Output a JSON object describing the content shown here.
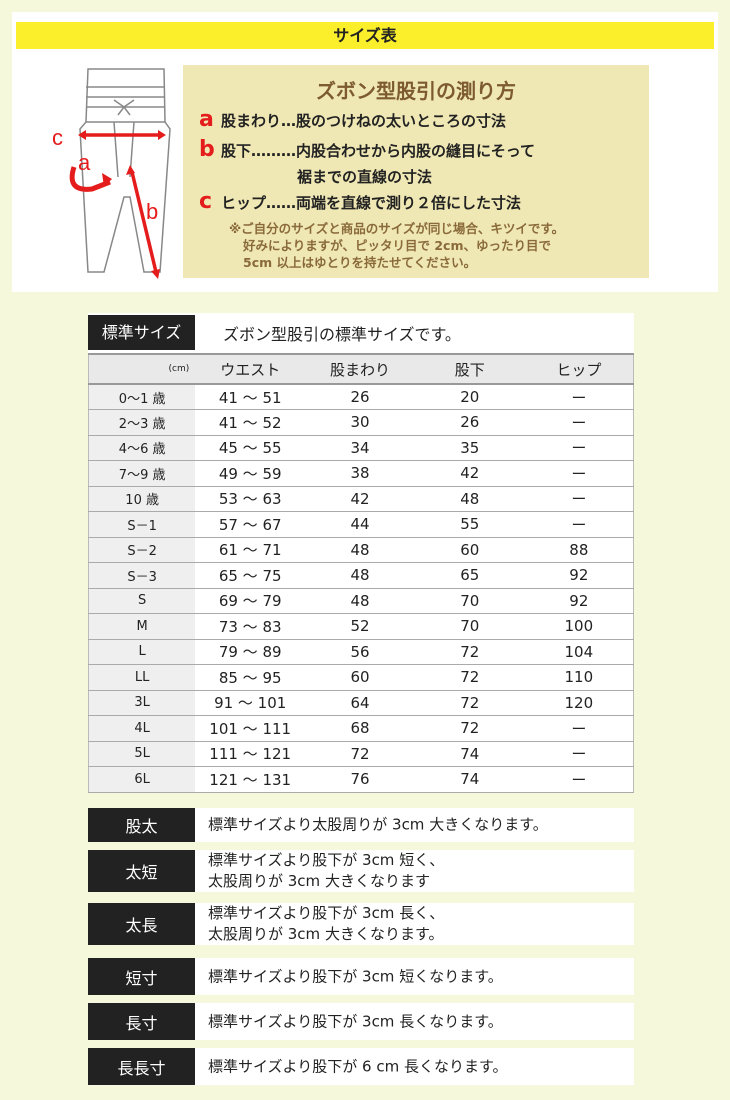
{
  "title": "サイズ表",
  "howto": {
    "heading": "ズボン型股引の測り方",
    "items": [
      {
        "letter": "a",
        "text": "股まわり…股のつけねの太いところの寸法"
      },
      {
        "letter": "b",
        "text": "股下………内股合わせから内股の縫目にそって",
        "text2": "裾までの直線の寸法"
      },
      {
        "letter": "c",
        "text": "ヒップ……両端を直線で測り２倍にした寸法"
      }
    ],
    "note": [
      "※ご自分のサイズと商品のサイズが同じ場合、キツイです。",
      "好みによりますが、ピッタリ目で 2cm、ゆったり目で",
      "5cm 以上はゆとりを持たせてください。"
    ]
  },
  "diagram": {
    "labels": [
      "c",
      "a",
      "b"
    ],
    "arrow_color": "#e51c1c"
  },
  "standard": {
    "label": "標準サイズ",
    "desc": "ズボン型股引の標準サイズです。",
    "columns": [
      "(cm)",
      "ウエスト",
      "股まわり",
      "股下",
      "ヒップ"
    ],
    "rows": [
      [
        "0～1 歳",
        "41 ～ 51",
        "26",
        "20",
        "ー"
      ],
      [
        "2～3 歳",
        "41 ～ 52",
        "30",
        "26",
        "ー"
      ],
      [
        "4～6 歳",
        "45 ～ 55",
        "34",
        "35",
        "ー"
      ],
      [
        "7～9 歳",
        "49 ～ 59",
        "38",
        "42",
        "ー"
      ],
      [
        "10 歳",
        "53 ～ 63",
        "42",
        "48",
        "ー"
      ],
      [
        "S－1",
        "57 ～ 67",
        "44",
        "55",
        "ー"
      ],
      [
        "S－2",
        "61 ～ 71",
        "48",
        "60",
        "88"
      ],
      [
        "S－3",
        "65 ～ 75",
        "48",
        "65",
        "92"
      ],
      [
        "S",
        "69 ～ 79",
        "48",
        "70",
        "92"
      ],
      [
        "M",
        "73 ～ 83",
        "52",
        "70",
        "100"
      ],
      [
        "L",
        "79 ～ 89",
        "56",
        "72",
        "104"
      ],
      [
        "LL",
        "85 ～ 95",
        "60",
        "72",
        "110"
      ],
      [
        "3L",
        "91 ～ 101",
        "64",
        "72",
        "120"
      ],
      [
        "4L",
        "101 ～ 111",
        "68",
        "72",
        "ー"
      ],
      [
        "5L",
        "111 ～ 121",
        "72",
        "74",
        "ー"
      ],
      [
        "6L",
        "121 ～ 131",
        "76",
        "74",
        "ー"
      ]
    ]
  },
  "variants": [
    {
      "label": "股太",
      "lines": [
        "標準サイズより太股周りが 3cm 大きくなります。"
      ]
    },
    {
      "label": "太短",
      "lines": [
        "標準サイズより股下が 3cm 短く、",
        "太股周りが 3cm 大きくなります"
      ]
    },
    {
      "label": "太長",
      "lines": [
        "標準サイズより股下が 3cm 長く、",
        "太股周りが 3cm 大きくなります。"
      ]
    },
    {
      "label": "短寸",
      "lines": [
        "標準サイズより股下が 3cm 短くなります。"
      ]
    },
    {
      "label": "長寸",
      "lines": [
        "標準サイズより股下が 3cm 長くなります。"
      ]
    },
    {
      "label": "長長寸",
      "lines": [
        "標準サイズより股下が 6 cm 長くなります。"
      ]
    }
  ]
}
